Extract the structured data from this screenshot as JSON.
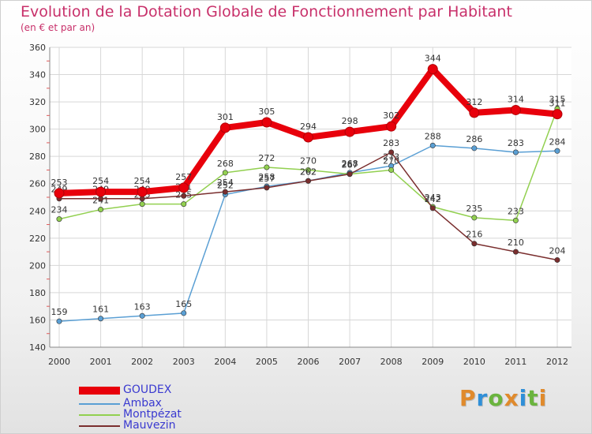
{
  "title": "Evolution de la Dotation Globale de Fonctionnement par Habitant",
  "subtitle": "(en € et par an)",
  "logo_parts": [
    {
      "text": "P",
      "color": "#e08a2c"
    },
    {
      "text": "r",
      "color": "#2f8fd8"
    },
    {
      "text": "o",
      "color": "#6ab43e"
    },
    {
      "text": "x",
      "color": "#e08a2c"
    },
    {
      "text": "i",
      "color": "#2f8fd8"
    },
    {
      "text": "t",
      "color": "#6ab43e"
    },
    {
      "text": "i",
      "color": "#e08a2c"
    }
  ],
  "chart_data": {
    "type": "line",
    "title": "Evolution de la Dotation Globale de Fonctionnement par Habitant",
    "ylabel": "(en € et par an)",
    "xlabel": "",
    "x": [
      "2000",
      "2001",
      "2002",
      "2003",
      "2004",
      "2005",
      "2006",
      "2007",
      "2008",
      "2009",
      "2010",
      "2011",
      "2012"
    ],
    "ylim": [
      140,
      360
    ],
    "yticks": [
      "140",
      "160",
      "180",
      "200",
      "220",
      "240",
      "260",
      "280",
      "300",
      "320",
      "340",
      "360"
    ],
    "grid": true,
    "legend_position": "bottom-left",
    "series": [
      {
        "name": "GOUDEX",
        "color": "#e8000b",
        "values": [
          253,
          254,
          254,
          257,
          301,
          305,
          294,
          298,
          302,
          344,
          312,
          314,
          311
        ],
        "labels": [
          "253",
          "254",
          "254",
          "257",
          "301",
          "305",
          "294",
          "298",
          "302",
          "344",
          "312",
          "314",
          "311"
        ]
      },
      {
        "name": "Ambax",
        "color": "#5a9fd4",
        "values": [
          159,
          161,
          163,
          165,
          252,
          258,
          262,
          268,
          273,
          288,
          286,
          283,
          284
        ],
        "labels": [
          "159",
          "161",
          "163",
          "165",
          "252",
          "258",
          "262",
          "268",
          "273",
          "288",
          "286",
          "283",
          "284"
        ]
      },
      {
        "name": "Montpézat",
        "color": "#92d050",
        "values": [
          234,
          241,
          245,
          245,
          268,
          272,
          270,
          267,
          270,
          243,
          235,
          233,
          315
        ],
        "labels": [
          "234",
          "241",
          "245",
          "245",
          "268",
          "272",
          "270",
          "267",
          "270",
          "243",
          "235",
          "233",
          "315"
        ]
      },
      {
        "name": "Mauvezin",
        "color": "#7a2e2e",
        "values": [
          249,
          249,
          249,
          251,
          254,
          257,
          262,
          267,
          283,
          242,
          216,
          210,
          204
        ],
        "labels": [
          "249",
          "249",
          "249",
          "251",
          "254",
          "257",
          "262",
          "267",
          "283",
          "242",
          "216",
          "210",
          "204"
        ]
      }
    ]
  }
}
